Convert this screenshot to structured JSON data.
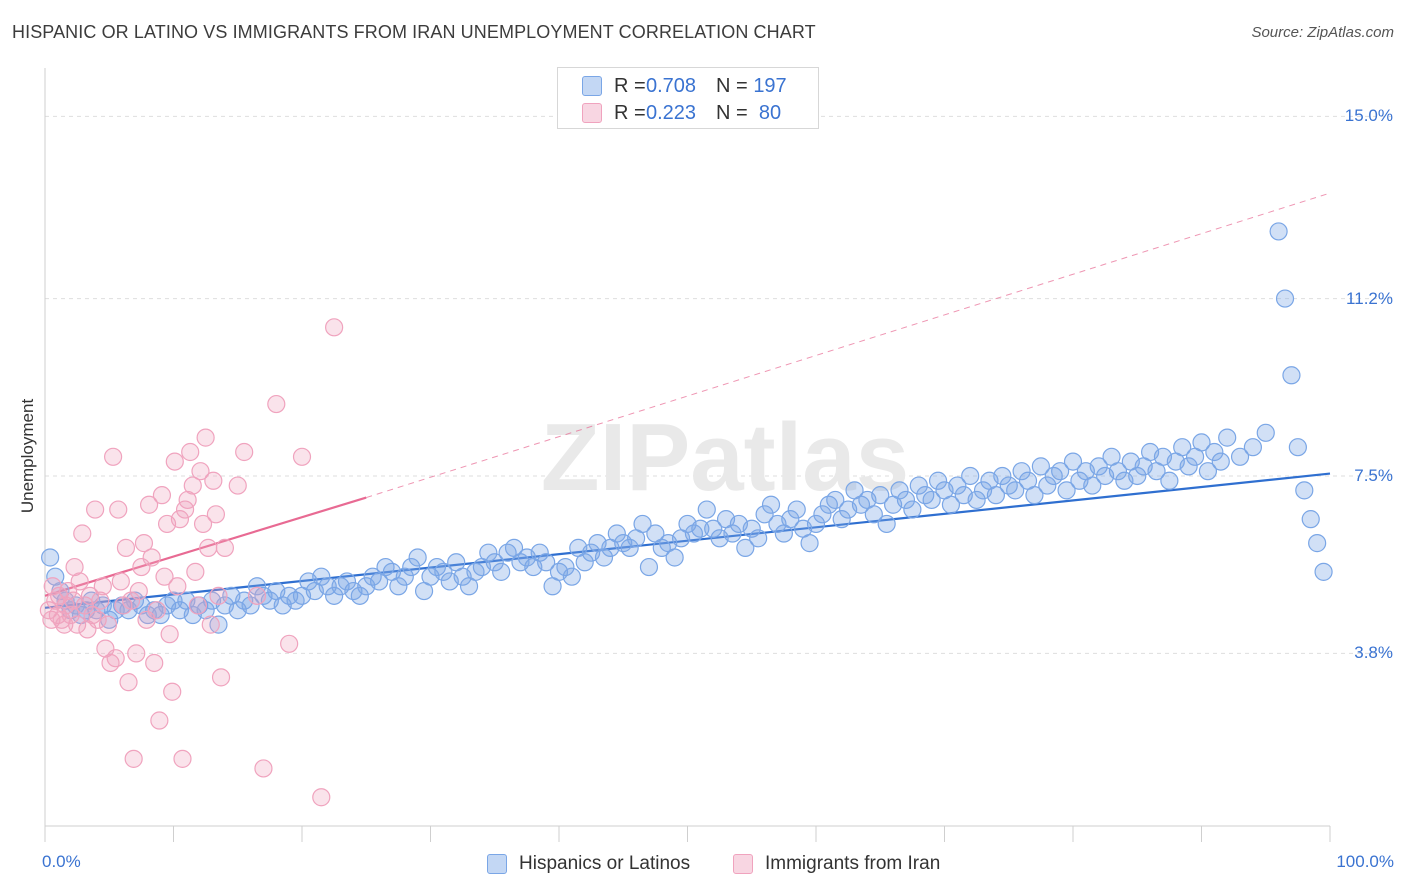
{
  "title": "HISPANIC OR LATINO VS IMMIGRANTS FROM IRAN UNEMPLOYMENT CORRELATION CHART",
  "source": "Source: ZipAtlas.com",
  "watermark": "ZIPatlas",
  "chart_data": {
    "type": "scatter",
    "ylabel": "Unemployment",
    "xlim": [
      0,
      100
    ],
    "ylim": [
      0.2,
      15.8
    ],
    "x_tick_labels": [
      "0.0%",
      "100.0%"
    ],
    "y_ticks": [
      {
        "value": 3.8,
        "label": "3.8%"
      },
      {
        "value": 7.5,
        "label": "7.5%"
      },
      {
        "value": 11.2,
        "label": "11.2%"
      },
      {
        "value": 15.0,
        "label": "15.0%"
      }
    ],
    "legend": {
      "rows": [
        {
          "r_label": "R =",
          "r_value": "0.708",
          "n_label": "N =",
          "n_value": "197"
        },
        {
          "r_label": "R =",
          "r_value": "0.223",
          "n_label": "N =",
          "n_value": "80"
        }
      ]
    },
    "series": [
      {
        "name": "Hispanics or Latinos",
        "color": "#7aa6e6",
        "fill": "rgba(122,166,230,0.35)",
        "trend_color": "#2f6fd0",
        "trend": {
          "x": [
            0,
            100
          ],
          "y": [
            4.75,
            7.55
          ]
        },
        "points": [
          [
            0.4,
            5.8
          ],
          [
            0.8,
            5.4
          ],
          [
            1.2,
            5.1
          ],
          [
            1.6,
            4.9
          ],
          [
            2.0,
            4.7
          ],
          [
            2.4,
            4.8
          ],
          [
            2.8,
            4.6
          ],
          [
            3.2,
            4.7
          ],
          [
            3.6,
            4.9
          ],
          [
            4.0,
            4.7
          ],
          [
            4.5,
            4.8
          ],
          [
            5.0,
            4.5
          ],
          [
            5.5,
            4.7
          ],
          [
            6.0,
            4.8
          ],
          [
            6.5,
            4.7
          ],
          [
            7.0,
            4.9
          ],
          [
            7.5,
            4.8
          ],
          [
            8.0,
            4.6
          ],
          [
            8.5,
            4.7
          ],
          [
            9.0,
            4.6
          ],
          [
            9.5,
            4.8
          ],
          [
            10.0,
            4.9
          ],
          [
            10.5,
            4.7
          ],
          [
            11.0,
            4.9
          ],
          [
            11.5,
            4.6
          ],
          [
            12.0,
            4.8
          ],
          [
            12.5,
            4.7
          ],
          [
            13.0,
            4.9
          ],
          [
            13.5,
            4.4
          ],
          [
            14.0,
            4.8
          ],
          [
            14.5,
            5.0
          ],
          [
            15.0,
            4.7
          ],
          [
            15.5,
            4.9
          ],
          [
            16.0,
            4.8
          ],
          [
            16.5,
            5.2
          ],
          [
            17.0,
            5.0
          ],
          [
            17.5,
            4.9
          ],
          [
            18.0,
            5.1
          ],
          [
            18.5,
            4.8
          ],
          [
            19.0,
            5.0
          ],
          [
            19.5,
            4.9
          ],
          [
            20.0,
            5.0
          ],
          [
            20.5,
            5.3
          ],
          [
            21.0,
            5.1
          ],
          [
            21.5,
            5.4
          ],
          [
            22.0,
            5.2
          ],
          [
            22.5,
            5.0
          ],
          [
            23.0,
            5.2
          ],
          [
            23.5,
            5.3
          ],
          [
            24.0,
            5.1
          ],
          [
            24.5,
            5.0
          ],
          [
            25.0,
            5.2
          ],
          [
            25.5,
            5.4
          ],
          [
            26.0,
            5.3
          ],
          [
            26.5,
            5.6
          ],
          [
            27.0,
            5.5
          ],
          [
            27.5,
            5.2
          ],
          [
            28.0,
            5.4
          ],
          [
            28.5,
            5.6
          ],
          [
            29.0,
            5.8
          ],
          [
            29.5,
            5.1
          ],
          [
            30.0,
            5.4
          ],
          [
            30.5,
            5.6
          ],
          [
            31.0,
            5.5
          ],
          [
            31.5,
            5.3
          ],
          [
            32.0,
            5.7
          ],
          [
            32.5,
            5.4
          ],
          [
            33.0,
            5.2
          ],
          [
            33.5,
            5.5
          ],
          [
            34.0,
            5.6
          ],
          [
            34.5,
            5.9
          ],
          [
            35.0,
            5.7
          ],
          [
            35.5,
            5.5
          ],
          [
            36.0,
            5.9
          ],
          [
            36.5,
            6.0
          ],
          [
            37.0,
            5.7
          ],
          [
            37.5,
            5.8
          ],
          [
            38.0,
            5.6
          ],
          [
            38.5,
            5.9
          ],
          [
            39.0,
            5.7
          ],
          [
            39.5,
            5.2
          ],
          [
            40.0,
            5.5
          ],
          [
            40.5,
            5.6
          ],
          [
            41.0,
            5.4
          ],
          [
            41.5,
            6.0
          ],
          [
            42.0,
            5.7
          ],
          [
            42.5,
            5.9
          ],
          [
            43.0,
            6.1
          ],
          [
            43.5,
            5.8
          ],
          [
            44.0,
            6.0
          ],
          [
            44.5,
            6.3
          ],
          [
            45.0,
            6.1
          ],
          [
            45.5,
            6.0
          ],
          [
            46.0,
            6.2
          ],
          [
            46.5,
            6.5
          ],
          [
            47.0,
            5.6
          ],
          [
            47.5,
            6.3
          ],
          [
            48.0,
            6.0
          ],
          [
            48.5,
            6.1
          ],
          [
            49.0,
            5.8
          ],
          [
            49.5,
            6.2
          ],
          [
            50.0,
            6.5
          ],
          [
            50.5,
            6.3
          ],
          [
            51.0,
            6.4
          ],
          [
            51.5,
            6.8
          ],
          [
            52.0,
            6.4
          ],
          [
            52.5,
            6.2
          ],
          [
            53.0,
            6.6
          ],
          [
            53.5,
            6.3
          ],
          [
            54.0,
            6.5
          ],
          [
            54.5,
            6.0
          ],
          [
            55.0,
            6.4
          ],
          [
            55.5,
            6.2
          ],
          [
            56.0,
            6.7
          ],
          [
            56.5,
            6.9
          ],
          [
            57.0,
            6.5
          ],
          [
            57.5,
            6.3
          ],
          [
            58.0,
            6.6
          ],
          [
            58.5,
            6.8
          ],
          [
            59.0,
            6.4
          ],
          [
            59.5,
            6.1
          ],
          [
            60.0,
            6.5
          ],
          [
            60.5,
            6.7
          ],
          [
            61.0,
            6.9
          ],
          [
            61.5,
            7.0
          ],
          [
            62.0,
            6.6
          ],
          [
            62.5,
            6.8
          ],
          [
            63.0,
            7.2
          ],
          [
            63.5,
            6.9
          ],
          [
            64.0,
            7.0
          ],
          [
            64.5,
            6.7
          ],
          [
            65.0,
            7.1
          ],
          [
            65.5,
            6.5
          ],
          [
            66.0,
            6.9
          ],
          [
            66.5,
            7.2
          ],
          [
            67.0,
            7.0
          ],
          [
            67.5,
            6.8
          ],
          [
            68.0,
            7.3
          ],
          [
            68.5,
            7.1
          ],
          [
            69.0,
            7.0
          ],
          [
            69.5,
            7.4
          ],
          [
            70.0,
            7.2
          ],
          [
            70.5,
            6.9
          ],
          [
            71.0,
            7.3
          ],
          [
            71.5,
            7.1
          ],
          [
            72.0,
            7.5
          ],
          [
            72.5,
            7.0
          ],
          [
            73.0,
            7.2
          ],
          [
            73.5,
            7.4
          ],
          [
            74.0,
            7.1
          ],
          [
            74.5,
            7.5
          ],
          [
            75.0,
            7.3
          ],
          [
            75.5,
            7.2
          ],
          [
            76.0,
            7.6
          ],
          [
            76.5,
            7.4
          ],
          [
            77.0,
            7.1
          ],
          [
            77.5,
            7.7
          ],
          [
            78.0,
            7.3
          ],
          [
            78.5,
            7.5
          ],
          [
            79.0,
            7.6
          ],
          [
            79.5,
            7.2
          ],
          [
            80.0,
            7.8
          ],
          [
            80.5,
            7.4
          ],
          [
            81.0,
            7.6
          ],
          [
            81.5,
            7.3
          ],
          [
            82.0,
            7.7
          ],
          [
            82.5,
            7.5
          ],
          [
            83.0,
            7.9
          ],
          [
            83.5,
            7.6
          ],
          [
            84.0,
            7.4
          ],
          [
            84.5,
            7.8
          ],
          [
            85.0,
            7.5
          ],
          [
            85.5,
            7.7
          ],
          [
            86.0,
            8.0
          ],
          [
            86.5,
            7.6
          ],
          [
            87.0,
            7.9
          ],
          [
            87.5,
            7.4
          ],
          [
            88.0,
            7.8
          ],
          [
            88.5,
            8.1
          ],
          [
            89.0,
            7.7
          ],
          [
            89.5,
            7.9
          ],
          [
            90.0,
            8.2
          ],
          [
            90.5,
            7.6
          ],
          [
            91.0,
            8.0
          ],
          [
            91.5,
            7.8
          ],
          [
            92.0,
            8.3
          ],
          [
            93.0,
            7.9
          ],
          [
            94.0,
            8.1
          ],
          [
            95.0,
            8.4
          ],
          [
            96.0,
            12.6
          ],
          [
            96.5,
            11.2
          ],
          [
            97.0,
            9.6
          ],
          [
            97.5,
            8.1
          ],
          [
            98.0,
            7.2
          ],
          [
            98.5,
            6.6
          ],
          [
            99.0,
            6.1
          ],
          [
            99.5,
            5.5
          ]
        ]
      },
      {
        "name": "Immigrants from Iran",
        "color": "#f0a3be",
        "fill": "rgba(240,163,190,0.30)",
        "trend_color": "#e86a93",
        "trend": {
          "x": [
            0,
            25
          ],
          "y": [
            5.0,
            7.05
          ]
        },
        "trend_extension": {
          "x": [
            25,
            100
          ],
          "y": [
            7.05,
            13.4
          ]
        },
        "points": [
          [
            0.3,
            4.7
          ],
          [
            0.5,
            4.5
          ],
          [
            0.6,
            5.2
          ],
          [
            0.8,
            4.9
          ],
          [
            1.0,
            4.6
          ],
          [
            1.1,
            5.0
          ],
          [
            1.3,
            4.5
          ],
          [
            1.5,
            4.4
          ],
          [
            1.6,
            4.8
          ],
          [
            1.8,
            5.1
          ],
          [
            2.0,
            4.6
          ],
          [
            2.2,
            4.9
          ],
          [
            2.3,
            5.6
          ],
          [
            2.5,
            4.4
          ],
          [
            2.7,
            5.3
          ],
          [
            2.9,
            6.3
          ],
          [
            3.1,
            4.8
          ],
          [
            3.3,
            4.3
          ],
          [
            3.5,
            5.0
          ],
          [
            3.7,
            4.6
          ],
          [
            3.9,
            6.8
          ],
          [
            4.1,
            4.5
          ],
          [
            4.3,
            4.9
          ],
          [
            4.5,
            5.2
          ],
          [
            4.7,
            3.9
          ],
          [
            4.9,
            4.4
          ],
          [
            5.1,
            3.6
          ],
          [
            5.3,
            7.9
          ],
          [
            5.5,
            3.7
          ],
          [
            5.7,
            6.8
          ],
          [
            5.9,
            5.3
          ],
          [
            6.1,
            4.8
          ],
          [
            6.3,
            6.0
          ],
          [
            6.5,
            3.2
          ],
          [
            6.7,
            4.9
          ],
          [
            6.9,
            1.6
          ],
          [
            7.1,
            3.8
          ],
          [
            7.3,
            5.1
          ],
          [
            7.5,
            5.6
          ],
          [
            7.7,
            6.1
          ],
          [
            7.9,
            4.5
          ],
          [
            8.1,
            6.9
          ],
          [
            8.3,
            5.8
          ],
          [
            8.5,
            3.6
          ],
          [
            8.7,
            4.7
          ],
          [
            8.9,
            2.4
          ],
          [
            9.1,
            7.1
          ],
          [
            9.3,
            5.4
          ],
          [
            9.5,
            6.5
          ],
          [
            9.7,
            4.2
          ],
          [
            9.9,
            3.0
          ],
          [
            10.1,
            7.8
          ],
          [
            10.3,
            5.2
          ],
          [
            10.5,
            6.6
          ],
          [
            10.7,
            1.6
          ],
          [
            10.9,
            6.8
          ],
          [
            11.1,
            7.0
          ],
          [
            11.3,
            8.0
          ],
          [
            11.5,
            7.3
          ],
          [
            11.7,
            5.5
          ],
          [
            11.9,
            4.8
          ],
          [
            12.1,
            7.6
          ],
          [
            12.3,
            6.5
          ],
          [
            12.5,
            8.3
          ],
          [
            12.7,
            6.0
          ],
          [
            12.9,
            4.4
          ],
          [
            13.1,
            7.4
          ],
          [
            13.3,
            6.7
          ],
          [
            13.5,
            5.0
          ],
          [
            13.7,
            3.3
          ],
          [
            14.0,
            6.0
          ],
          [
            15.0,
            7.3
          ],
          [
            15.5,
            8.0
          ],
          [
            16.5,
            5.0
          ],
          [
            17.0,
            1.4
          ],
          [
            18.0,
            9.0
          ],
          [
            19.0,
            4.0
          ],
          [
            20.0,
            7.9
          ],
          [
            21.5,
            0.8
          ],
          [
            22.5,
            10.6
          ]
        ]
      }
    ]
  }
}
